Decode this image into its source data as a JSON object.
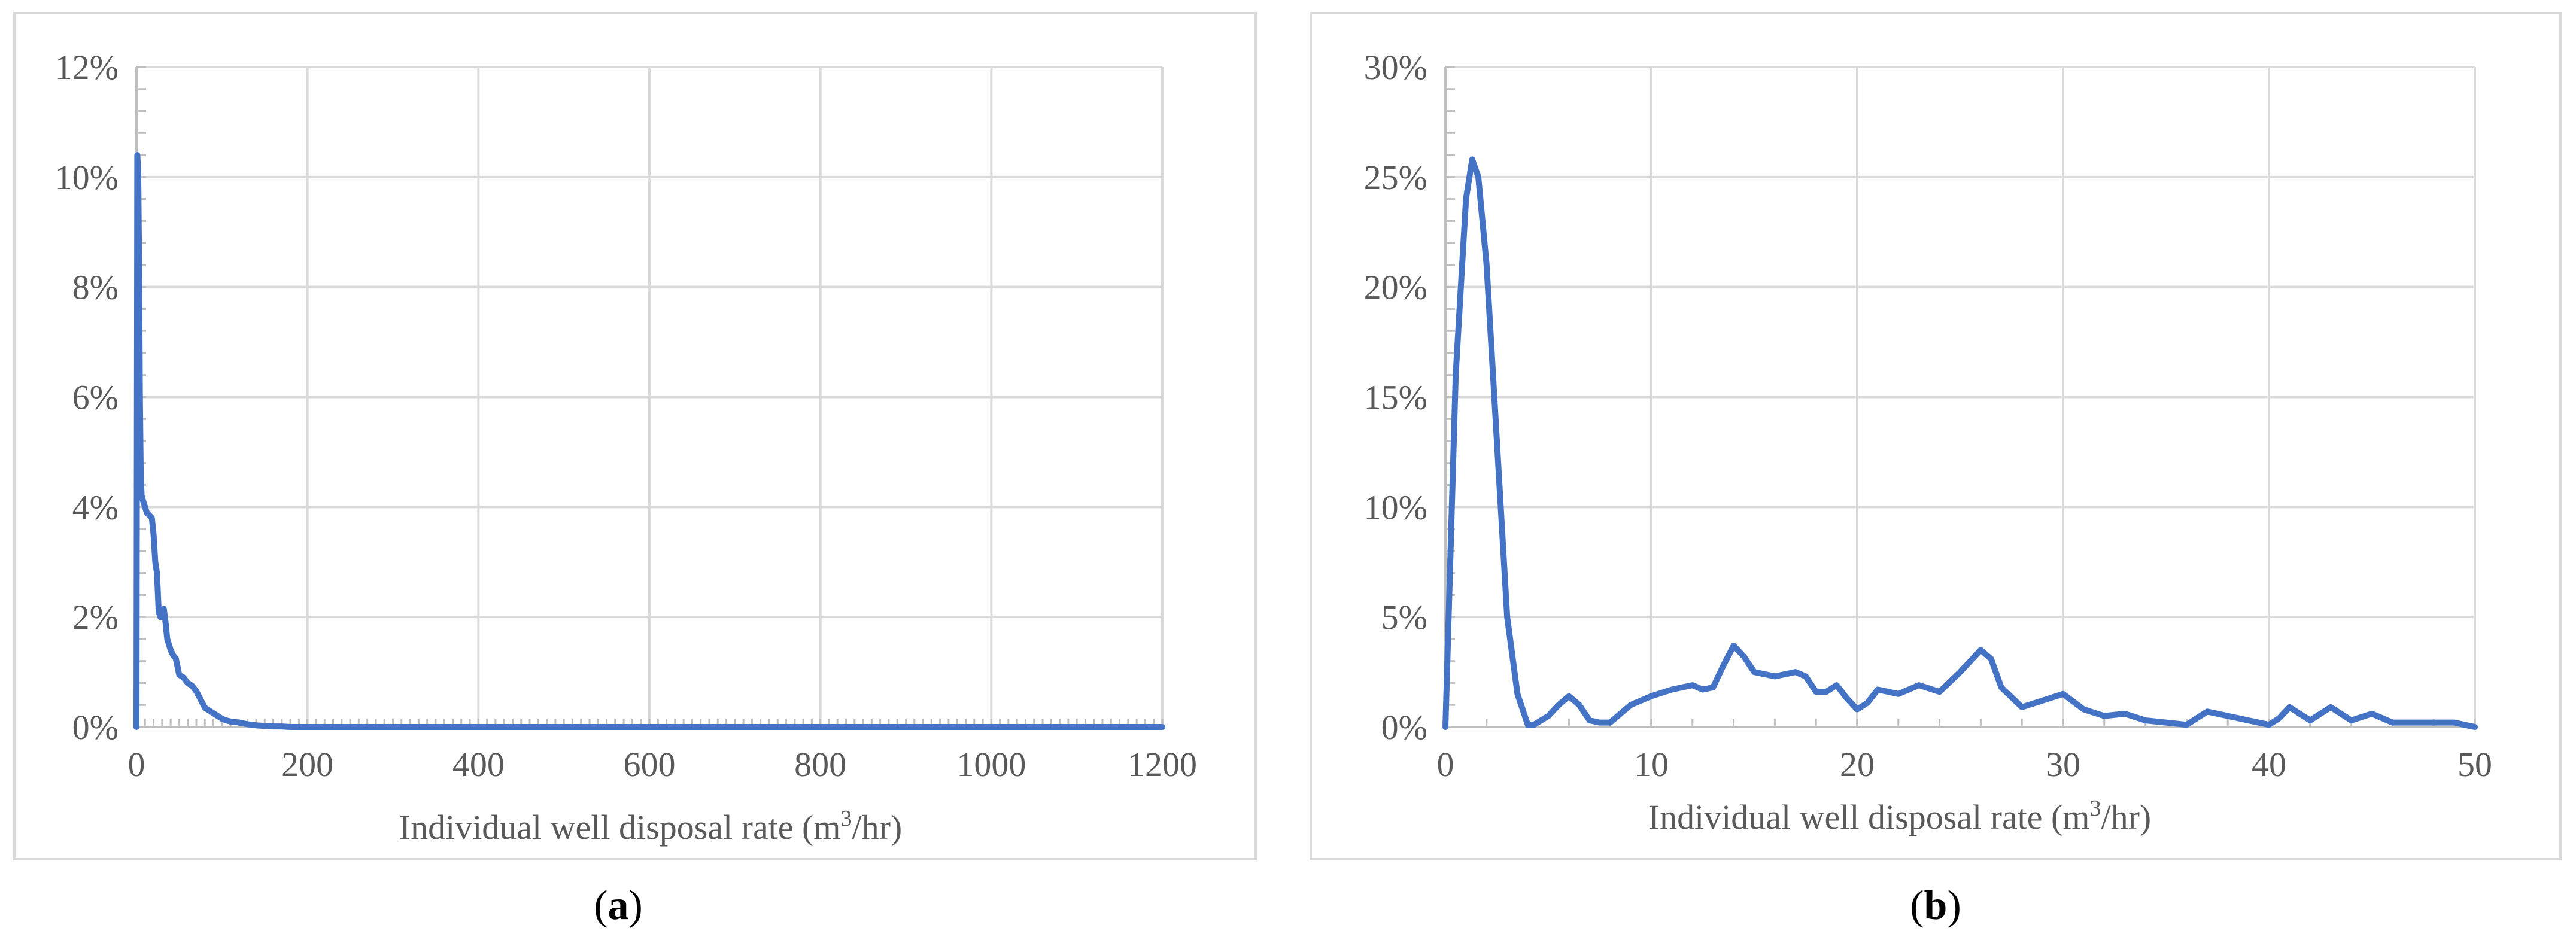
{
  "panels": [
    {
      "label_open": "(",
      "label_letter": "a",
      "label_close": ")"
    },
    {
      "label_open": "(",
      "label_letter": "b",
      "label_close": ")"
    }
  ],
  "colors": {
    "line": "#4472C4",
    "grid": "#d9d9d9",
    "frame": "#d9d9d9",
    "text": "#595959"
  },
  "chart_data": [
    {
      "type": "line",
      "xlabel_pre": "Individual well disposal rate (m",
      "xlabel_sup": "3",
      "xlabel_post": "/hr)",
      "ylabel": "",
      "xlim": [
        0,
        1200
      ],
      "ylim": [
        0,
        12
      ],
      "y_unit": "%",
      "x_ticks": [
        0,
        200,
        400,
        600,
        800,
        1000,
        1200
      ],
      "y_ticks": [
        0,
        2,
        4,
        6,
        8,
        10,
        12
      ],
      "grid": true,
      "series": [
        {
          "x": [
            0,
            1,
            2,
            3,
            4,
            5,
            6,
            8,
            10,
            12,
            15,
            18,
            20,
            22,
            24,
            26,
            28,
            30,
            32,
            34,
            36,
            38,
            40,
            43,
            46,
            50,
            55,
            60,
            65,
            70,
            75,
            80,
            85,
            90,
            95,
            100,
            105,
            110,
            120,
            130,
            140,
            150,
            160,
            170,
            180,
            200,
            300,
            400,
            600,
            800,
            1000,
            1200
          ],
          "y": [
            0,
            10.4,
            10.1,
            8.5,
            6.0,
            4.6,
            4.2,
            4.1,
            4.0,
            3.9,
            3.85,
            3.8,
            3.5,
            3.0,
            2.8,
            2.1,
            2.0,
            2.0,
            2.15,
            1.9,
            1.6,
            1.5,
            1.4,
            1.3,
            1.25,
            0.95,
            0.9,
            0.8,
            0.75,
            0.65,
            0.5,
            0.35,
            0.3,
            0.25,
            0.2,
            0.15,
            0.12,
            0.1,
            0.08,
            0.05,
            0.03,
            0.02,
            0.01,
            0.01,
            0.0,
            0.0,
            0.0,
            0.0,
            0.0,
            0.0,
            0.0,
            0.0
          ]
        }
      ]
    },
    {
      "type": "line",
      "xlabel_pre": "Individual well disposal rate (m",
      "xlabel_sup": "3",
      "xlabel_post": "/hr)",
      "ylabel": "",
      "xlim": [
        0,
        50
      ],
      "ylim": [
        0,
        30
      ],
      "y_unit": "%",
      "x_ticks": [
        0,
        10,
        20,
        30,
        40,
        50
      ],
      "y_ticks": [
        0,
        5,
        10,
        15,
        20,
        25,
        30
      ],
      "grid": true,
      "series": [
        {
          "x": [
            0,
            0.5,
            1,
            1.3,
            1.6,
            2,
            2.5,
            3,
            3.5,
            4,
            4.3,
            5,
            5.5,
            6,
            6.5,
            7,
            7.5,
            8,
            8.5,
            9,
            10,
            11,
            12,
            12.5,
            13,
            13.5,
            14,
            14.5,
            15,
            16,
            17,
            17.5,
            18,
            18.5,
            19,
            19.5,
            20,
            20.5,
            21,
            22,
            23,
            24,
            25,
            26,
            26.5,
            27,
            28,
            29,
            30,
            31,
            32,
            33,
            34,
            35,
            36,
            37,
            38,
            39,
            40,
            40.5,
            41,
            42,
            43,
            44,
            45,
            46,
            47,
            48,
            49,
            50
          ],
          "y": [
            0,
            16,
            24,
            25.8,
            25,
            21,
            13,
            5,
            1.5,
            0.1,
            0.1,
            0.5,
            1.0,
            1.4,
            1.0,
            0.3,
            0.2,
            0.2,
            0.6,
            1.0,
            1.4,
            1.7,
            1.9,
            1.7,
            1.8,
            2.8,
            3.7,
            3.2,
            2.5,
            2.3,
            2.5,
            2.3,
            1.6,
            1.6,
            1.9,
            1.3,
            0.8,
            1.1,
            1.7,
            1.5,
            1.9,
            1.6,
            2.5,
            3.5,
            3.1,
            1.8,
            0.9,
            1.2,
            1.5,
            0.8,
            0.5,
            0.6,
            0.3,
            0.2,
            0.1,
            0.7,
            0.5,
            0.3,
            0.1,
            0.4,
            0.9,
            0.3,
            0.9,
            0.3,
            0.6,
            0.2,
            0.2,
            0.2,
            0.2,
            0.0
          ]
        }
      ]
    }
  ]
}
